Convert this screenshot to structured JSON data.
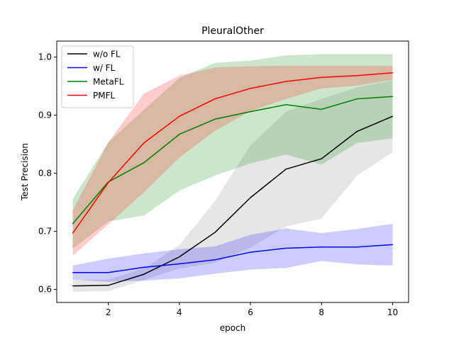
{
  "chart_data": {
    "type": "line",
    "title": "PleuralOther",
    "xlabel": "epoch",
    "ylabel": "Test Precision",
    "xlim": [
      0.55,
      10.45
    ],
    "ylim": [
      0.5775,
      1.0275
    ],
    "xticks": [
      2,
      4,
      6,
      8,
      10
    ],
    "xtick_labels": [
      "2",
      "4",
      "6",
      "8",
      "10"
    ],
    "yticks": [
      0.6,
      0.7,
      0.8,
      0.9,
      1.0
    ],
    "ytick_labels": [
      "0.6",
      "0.7",
      "0.8",
      "0.9",
      "1.0"
    ],
    "grid": false,
    "legend_position": "top-left",
    "x": [
      1,
      2,
      3,
      4,
      5,
      6,
      7,
      8,
      9,
      10
    ],
    "series": [
      {
        "name": "w/o FL",
        "color": "#000000",
        "fill_color": "#808080",
        "values": [
          0.606,
          0.607,
          0.626,
          0.656,
          0.698,
          0.758,
          0.807,
          0.825,
          0.872,
          0.898
        ],
        "lower": [
          0.596,
          0.597,
          0.616,
          0.636,
          0.646,
          0.672,
          0.708,
          0.722,
          0.796,
          0.836
        ],
        "upper": [
          0.616,
          0.617,
          0.636,
          0.676,
          0.752,
          0.848,
          0.906,
          0.928,
          0.948,
          0.96
        ]
      },
      {
        "name": "w/ FL",
        "color": "#0000ff",
        "fill_color": "#0000ff",
        "values": [
          0.629,
          0.629,
          0.638,
          0.644,
          0.651,
          0.664,
          0.671,
          0.673,
          0.673,
          0.677
        ],
        "lower": [
          0.617,
          0.613,
          0.615,
          0.619,
          0.627,
          0.634,
          0.637,
          0.649,
          0.643,
          0.641
        ],
        "upper": [
          0.641,
          0.653,
          0.662,
          0.669,
          0.674,
          0.694,
          0.705,
          0.697,
          0.704,
          0.713
        ]
      },
      {
        "name": "MetaFL",
        "color": "#008000",
        "fill_color": "#008000",
        "values": [
          0.713,
          0.785,
          0.818,
          0.867,
          0.893,
          0.906,
          0.918,
          0.91,
          0.928,
          0.932
        ],
        "lower": [
          0.67,
          0.717,
          0.727,
          0.77,
          0.796,
          0.817,
          0.832,
          0.815,
          0.852,
          0.86
        ],
        "upper": [
          0.756,
          0.853,
          0.909,
          0.964,
          0.99,
          0.994,
          1.003,
          1.005,
          1.005,
          1.005
        ]
      },
      {
        "name": "PMFL",
        "color": "#ff0000",
        "fill_color": "#ff0000",
        "values": [
          0.697,
          0.784,
          0.852,
          0.898,
          0.928,
          0.946,
          0.958,
          0.965,
          0.968,
          0.973
        ],
        "lower": [
          0.658,
          0.712,
          0.767,
          0.827,
          0.873,
          0.907,
          0.928,
          0.946,
          0.951,
          0.961
        ],
        "upper": [
          0.736,
          0.853,
          0.937,
          0.968,
          0.982,
          0.984,
          0.985,
          0.985,
          0.985,
          0.985
        ]
      }
    ]
  }
}
